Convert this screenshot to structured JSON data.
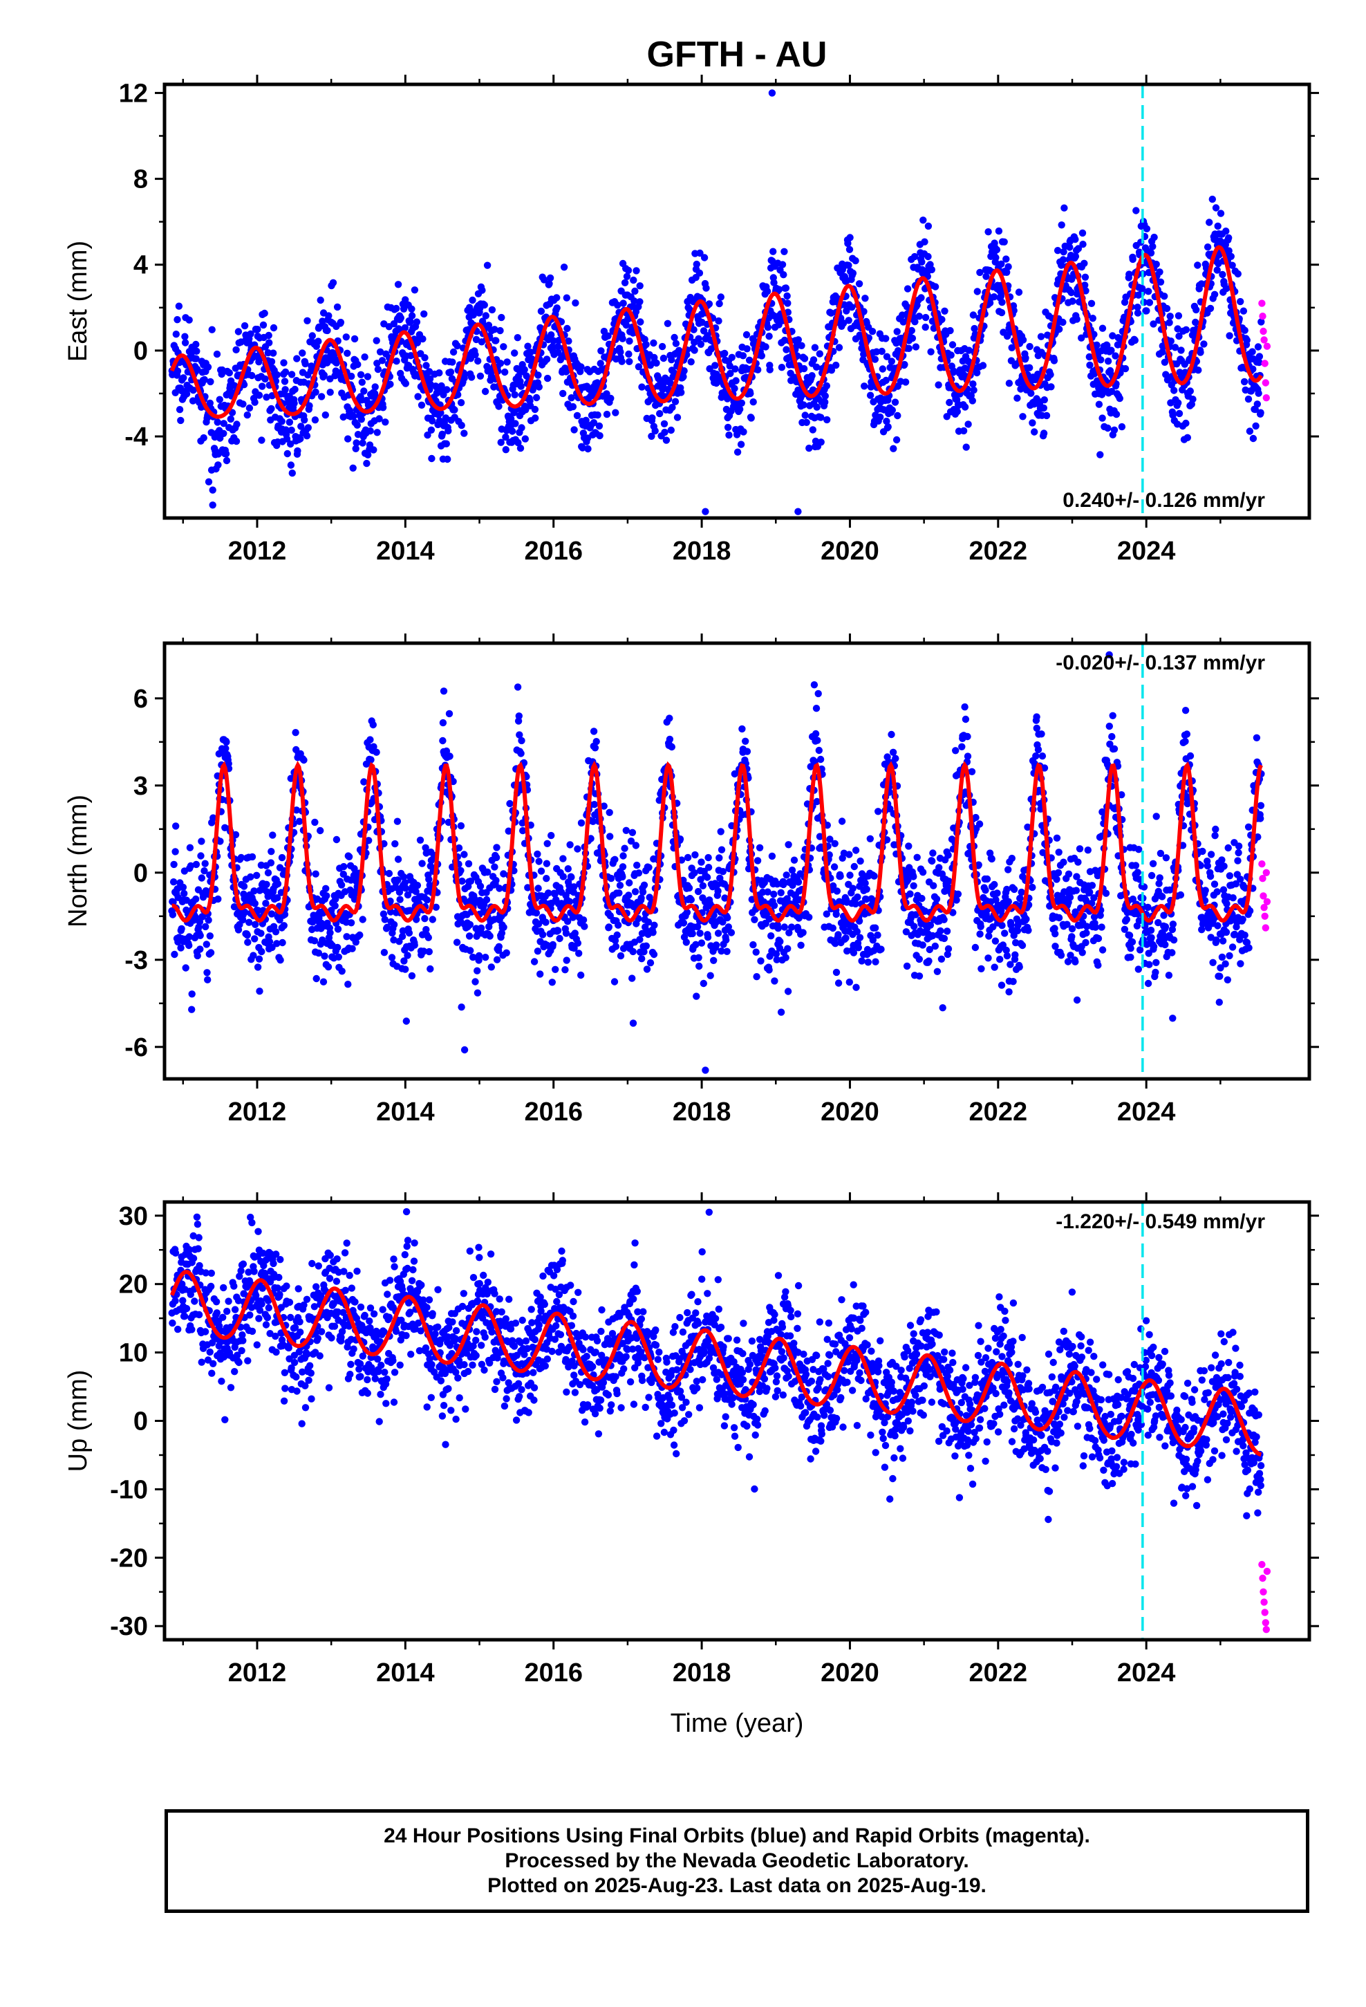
{
  "title": "GFTH - AU",
  "xlabel": "Time (year)",
  "caption": {
    "line1": "24 Hour Positions Using Final Orbits (blue) and Rapid Orbits (magenta).",
    "line2": "Processed by the Nevada Geodetic Laboratory.",
    "line3": "Plotted on 2025-Aug-23. Last data on 2025-Aug-19."
  },
  "colors": {
    "final": "#0000ff",
    "rapid": "#ff00ff",
    "model": "#ff0000",
    "marker_line": "#00e5ee"
  },
  "chart_data": [
    {
      "type": "scatter",
      "component": "east",
      "ylabel": "East (mm)",
      "xlim": [
        2010.75,
        2026.2
      ],
      "ylim": [
        -7.8,
        12.4
      ],
      "yticks": [
        12,
        8,
        4,
        0,
        -4
      ],
      "yticklabels": [
        "12",
        "8",
        "4",
        "0",
        "-4"
      ],
      "xticks": [
        2012,
        2014,
        2016,
        2018,
        2020,
        2022,
        2024
      ],
      "xticklabels": [
        "2012",
        "2014",
        "2016",
        "2018",
        "2020",
        "2022",
        "2024"
      ],
      "rate_label": "0.240+/- 0.126 mm/yr",
      "rate_label_position": "bottom-right",
      "marker_line_x": 2023.95,
      "data_start": 2010.85,
      "data_end": 2025.55,
      "rapid_start": 2025.56,
      "rapid_end": 2025.63,
      "model": {
        "offset": -0.2,
        "rate": 0.24,
        "annual_amp": 2.3,
        "annual_amp_growth": 0.12,
        "annual_peak_phase": 0.98,
        "semiannual_amp": 0.2
      },
      "noise_sd": 1.2,
      "outliers": [
        {
          "x": 2018.95,
          "y": 12.0
        },
        {
          "x": 2011.4,
          "y": -6.5
        },
        {
          "x": 2018.05,
          "y": -7.5
        },
        {
          "x": 2019.3,
          "y": -7.5
        }
      ],
      "rapid_points": [
        2.2,
        1.6,
        0.9,
        0.5,
        -0.6,
        -1.5,
        -2.2,
        0.2
      ]
    },
    {
      "type": "scatter",
      "component": "north",
      "ylabel": "North (mm)",
      "xlim": [
        2010.75,
        2026.2
      ],
      "ylim": [
        -7.1,
        7.9
      ],
      "yticks": [
        6,
        3,
        0,
        -3,
        -6
      ],
      "yticklabels": [
        "6",
        "3",
        "0",
        "-3",
        "-6"
      ],
      "xticks": [
        2012,
        2014,
        2016,
        2018,
        2020,
        2022,
        2024
      ],
      "xticklabels": [
        "2012",
        "2014",
        "2016",
        "2018",
        "2020",
        "2022",
        "2024"
      ],
      "rate_label": "-0.020+/- 0.137 mm/yr",
      "rate_label_position": "top-right",
      "marker_line_x": 2023.95,
      "data_start": 2010.85,
      "data_end": 2025.55,
      "rapid_start": 2025.56,
      "rapid_end": 2025.63,
      "model": {
        "base": -1.4,
        "peak": 3.7,
        "peak_phase": 0.55,
        "peak_width": 0.09
      },
      "noise_sd": 1.1,
      "outliers": [
        {
          "x": 2018.05,
          "y": -6.8
        },
        {
          "x": 2014.8,
          "y": -6.1
        },
        {
          "x": 2023.5,
          "y": 7.5
        }
      ],
      "rapid_points": [
        0.3,
        -0.2,
        -0.8,
        -1.2,
        -1.5,
        -1.9,
        0.0,
        -1.0
      ]
    },
    {
      "type": "scatter",
      "component": "up",
      "ylabel": "Up (mm)",
      "xlim": [
        2010.75,
        2026.2
      ],
      "ylim": [
        -32,
        32
      ],
      "yticks": [
        30,
        20,
        10,
        0,
        -10,
        -20,
        -30
      ],
      "yticklabels": [
        "30",
        "20",
        "10",
        "0",
        "-10",
        "-20",
        "-30"
      ],
      "xticks": [
        2012,
        2014,
        2016,
        2018,
        2020,
        2022,
        2024
      ],
      "xticklabels": [
        "2012",
        "2014",
        "2016",
        "2018",
        "2020",
        "2022",
        "2024"
      ],
      "rate_label": "-1.220+/- 0.549 mm/yr",
      "rate_label_position": "top-right",
      "marker_line_x": 2023.95,
      "data_start": 2010.85,
      "data_end": 2025.55,
      "rapid_start": 2025.56,
      "rapid_end": 2025.63,
      "model": {
        "offset": 8.5,
        "rate": -1.22,
        "annual_amp": 4.5,
        "annual_peak_phase": 0.05,
        "semiannual_amp": 0.3
      },
      "noise_sd": 4.2,
      "outliers": [
        {
          "x": 2018.1,
          "y": 30.5
        },
        {
          "x": 2017.1,
          "y": 26.0
        },
        {
          "x": 2011.1,
          "y": 24.0
        }
      ],
      "rapid_points": [
        -21,
        -23,
        -25,
        -26.5,
        -28,
        -29.5,
        -30.5,
        -22
      ]
    }
  ]
}
